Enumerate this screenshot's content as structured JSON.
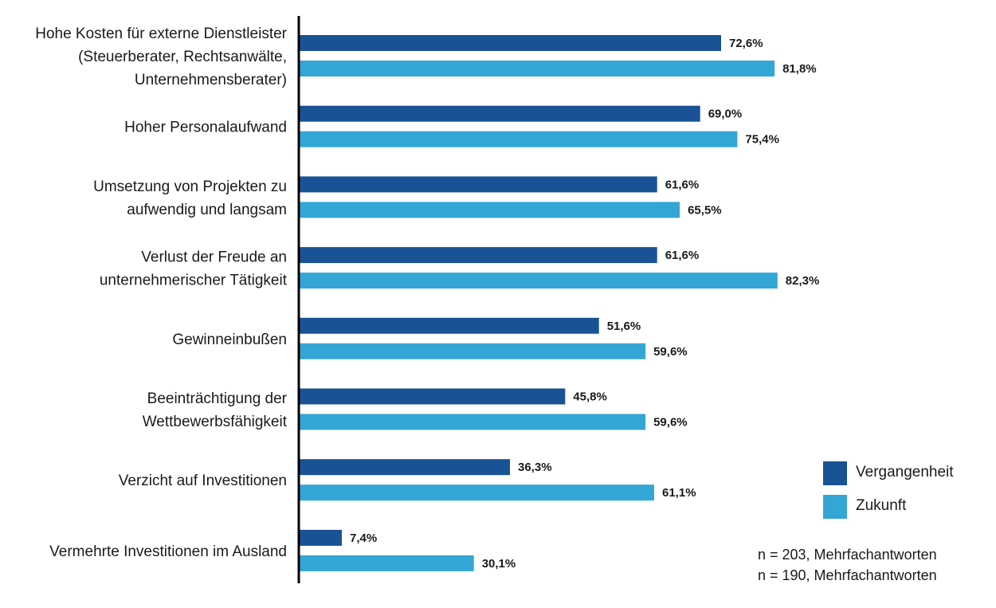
{
  "chart_data": {
    "type": "bar",
    "orientation": "horizontal",
    "categories": [
      [
        "Hohe Kosten für externe Dienstleister",
        "(Steuerberater, Rechtsanwälte,",
        "Unternehmensberater)"
      ],
      [
        "Hoher Personalaufwand"
      ],
      [
        "Umsetzung von Projekten zu",
        "aufwendig und langsam"
      ],
      [
        "Verlust der Freude an",
        "unternehmerischer Tätigkeit"
      ],
      [
        "Gewinneinbußen"
      ],
      [
        "Beeinträchtigung der",
        "Wettbewerbsfähigkeit"
      ],
      [
        "Verzicht auf Investitionen"
      ],
      [
        "Vermehrte Investitionen im Ausland"
      ]
    ],
    "series": [
      {
        "name": "Vergangenheit",
        "color": "#1a5296",
        "values": [
          72.6,
          69.0,
          61.6,
          61.6,
          51.6,
          45.8,
          36.3,
          7.4
        ],
        "labels": [
          "72,6%",
          "69,0%",
          "61,6%",
          "61,6%",
          "51,6%",
          "45,8%",
          "36,3%",
          "7,4%"
        ]
      },
      {
        "name": "Zukunft",
        "color": "#33a6d6",
        "values": [
          81.8,
          75.4,
          65.5,
          82.3,
          59.6,
          59.6,
          61.1,
          30.1
        ],
        "labels": [
          "81,8%",
          "75,4%",
          "65,5%",
          "82,3%",
          "59,6%",
          "59,6%",
          "61,1%",
          "30,1%"
        ]
      }
    ],
    "xlim": [
      0,
      100
    ],
    "grid": false,
    "legend_position": "bottom-right",
    "axis_color": "#000000"
  },
  "notes": [
    "n = 203, Mehrfachantworten",
    "n = 190, Mehrfachantworten"
  ]
}
